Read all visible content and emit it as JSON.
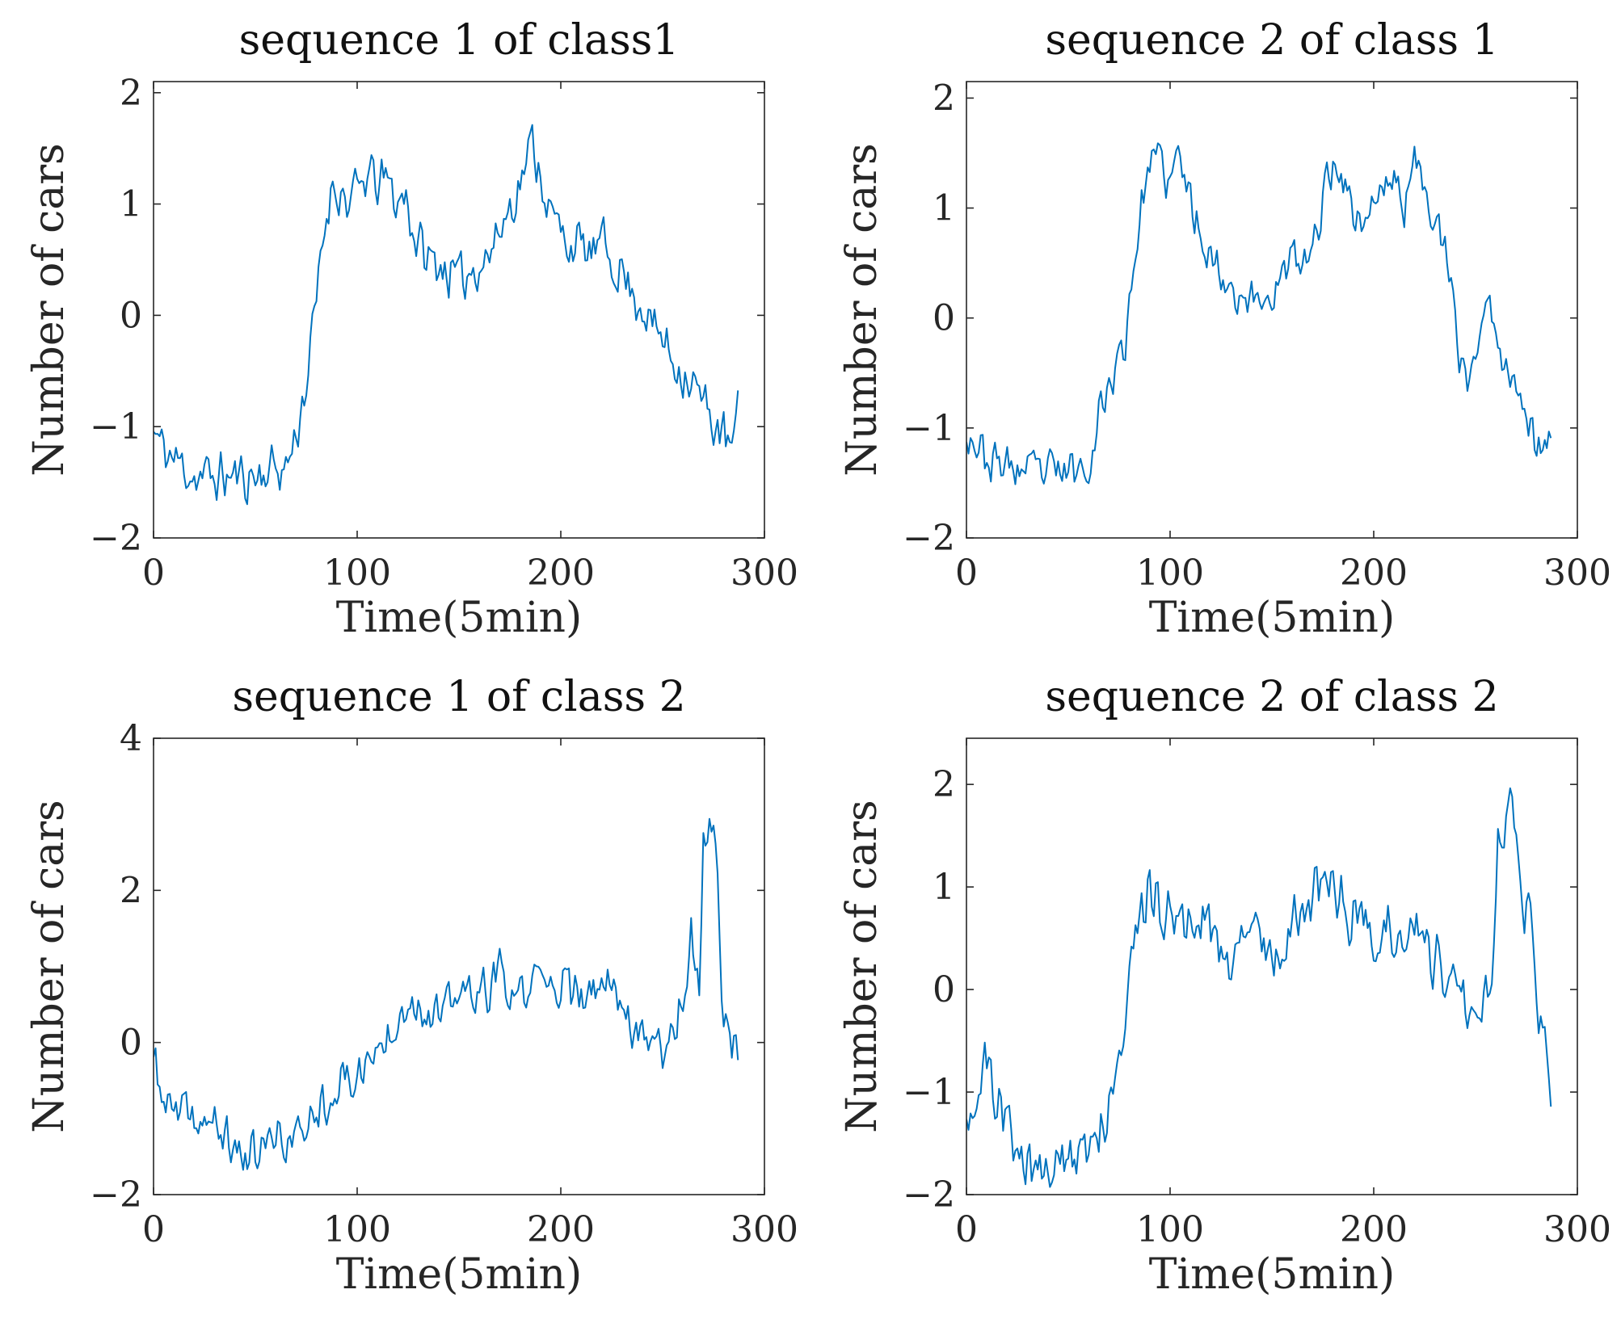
{
  "line_color": "#0072BD",
  "chart_data": [
    {
      "type": "line",
      "title": "sequence 1 of class1",
      "xlabel": "Time(5min)",
      "ylabel": "Number of cars",
      "xlim": [
        0,
        300
      ],
      "ylim": [
        -2,
        2.1
      ],
      "xticks": [
        0,
        100,
        200,
        300
      ],
      "xtick_labels": [
        "0",
        "100",
        "200",
        "300"
      ],
      "yticks": [
        -2,
        -1,
        0,
        1,
        2
      ],
      "ytick_labels": [
        "−2",
        "−1",
        "0",
        "1",
        "2"
      ],
      "x_step": 1,
      "series": [
        {
          "name": "sequence 1 of class1",
          "keypoints": [
            [
              0,
              -1.05
            ],
            [
              5,
              -1.2
            ],
            [
              10,
              -1.3
            ],
            [
              15,
              -1.35
            ],
            [
              20,
              -1.45
            ],
            [
              30,
              -1.45
            ],
            [
              40,
              -1.45
            ],
            [
              50,
              -1.45
            ],
            [
              60,
              -1.35
            ],
            [
              64,
              -1.4
            ],
            [
              68,
              -1.2
            ],
            [
              72,
              -0.9
            ],
            [
              75,
              -0.6
            ],
            [
              78,
              -0.2
            ],
            [
              81,
              0.3
            ],
            [
              84,
              0.8
            ],
            [
              88,
              1.2
            ],
            [
              92,
              1.1
            ],
            [
              96,
              1.0
            ],
            [
              100,
              1.1
            ],
            [
              105,
              1.25
            ],
            [
              110,
              1.2
            ],
            [
              115,
              1.2
            ],
            [
              120,
              1.0
            ],
            [
              124,
              1.1
            ],
            [
              128,
              0.7
            ],
            [
              135,
              0.5
            ],
            [
              142,
              0.45
            ],
            [
              150,
              0.3
            ],
            [
              158,
              0.45
            ],
            [
              165,
              0.55
            ],
            [
              172,
              0.85
            ],
            [
              180,
              1.2
            ],
            [
              186,
              1.55
            ],
            [
              190,
              1.3
            ],
            [
              195,
              0.9
            ],
            [
              200,
              0.75
            ],
            [
              205,
              0.65
            ],
            [
              210,
              0.6
            ],
            [
              215,
              0.55
            ],
            [
              220,
              0.65
            ],
            [
              225,
              0.5
            ],
            [
              230,
              0.4
            ],
            [
              235,
              0.2
            ],
            [
              240,
              0.1
            ],
            [
              245,
              -0.1
            ],
            [
              250,
              -0.2
            ],
            [
              255,
              -0.4
            ],
            [
              260,
              -0.5
            ],
            [
              265,
              -0.6
            ],
            [
              270,
              -0.8
            ],
            [
              275,
              -0.95
            ],
            [
              280,
              -1.1
            ],
            [
              284,
              -1.2
            ],
            [
              287,
              -0.9
            ]
          ],
          "noise": 0.28,
          "seed": 11
        }
      ]
    },
    {
      "type": "line",
      "title": "sequence 2 of class 1",
      "xlabel": "Time(5min)",
      "ylabel": "Number of cars",
      "xlim": [
        0,
        300
      ],
      "ylim": [
        -2,
        2.15
      ],
      "xticks": [
        0,
        100,
        200,
        300
      ],
      "xtick_labels": [
        "0",
        "100",
        "200",
        "300"
      ],
      "yticks": [
        -2,
        -1,
        0,
        1,
        2
      ],
      "ytick_labels": [
        "−2",
        "−1",
        "0",
        "1",
        "2"
      ],
      "x_step": 1,
      "series": [
        {
          "name": "sequence 2 of class 1",
          "keypoints": [
            [
              0,
              -1.0
            ],
            [
              5,
              -1.15
            ],
            [
              10,
              -1.3
            ],
            [
              20,
              -1.35
            ],
            [
              30,
              -1.4
            ],
            [
              40,
              -1.4
            ],
            [
              50,
              -1.4
            ],
            [
              58,
              -1.35
            ],
            [
              62,
              -1.2
            ],
            [
              66,
              -0.8
            ],
            [
              70,
              -0.6
            ],
            [
              74,
              -0.45
            ],
            [
              78,
              -0.2
            ],
            [
              82,
              0.5
            ],
            [
              86,
              1.0
            ],
            [
              90,
              1.45
            ],
            [
              95,
              1.4
            ],
            [
              100,
              1.2
            ],
            [
              104,
              1.5
            ],
            [
              108,
              1.2
            ],
            [
              112,
              0.95
            ],
            [
              118,
              0.65
            ],
            [
              125,
              0.4
            ],
            [
              132,
              0.25
            ],
            [
              140,
              0.15
            ],
            [
              148,
              0.2
            ],
            [
              155,
              0.35
            ],
            [
              160,
              0.55
            ],
            [
              165,
              0.45
            ],
            [
              170,
              0.6
            ],
            [
              176,
              1.2
            ],
            [
              182,
              1.45
            ],
            [
              188,
              1.1
            ],
            [
              193,
              0.85
            ],
            [
              198,
              1.0
            ],
            [
              204,
              1.15
            ],
            [
              210,
              1.3
            ],
            [
              215,
              1.0
            ],
            [
              220,
              1.4
            ],
            [
              225,
              1.3
            ],
            [
              230,
              0.9
            ],
            [
              235,
              0.55
            ],
            [
              238,
              0.25
            ],
            [
              242,
              -0.35
            ],
            [
              246,
              -0.55
            ],
            [
              250,
              -0.3
            ],
            [
              254,
              0.0
            ],
            [
              258,
              0.05
            ],
            [
              262,
              -0.25
            ],
            [
              266,
              -0.55
            ],
            [
              270,
              -0.5
            ],
            [
              274,
              -0.75
            ],
            [
              277,
              -1.0
            ],
            [
              280,
              -1.2
            ],
            [
              283,
              -1.15
            ],
            [
              287,
              -1.1
            ]
          ],
          "noise": 0.24,
          "seed": 23
        }
      ]
    },
    {
      "type": "line",
      "title": "sequence 1 of class 2",
      "xlabel": "Time(5min)",
      "ylabel": "Number of cars",
      "xlim": [
        0,
        300
      ],
      "ylim": [
        -2,
        4
      ],
      "xticks": [
        0,
        100,
        200,
        300
      ],
      "xtick_labels": [
        "0",
        "100",
        "200",
        "300"
      ],
      "yticks": [
        -2,
        0,
        2,
        4
      ],
      "ytick_labels": [
        "−2",
        "0",
        "2",
        "4"
      ],
      "x_step": 1,
      "series": [
        {
          "name": "sequence 1 of class 2",
          "keypoints": [
            [
              0,
              -0.2
            ],
            [
              4,
              -0.7
            ],
            [
              10,
              -0.95
            ],
            [
              20,
              -1.0
            ],
            [
              30,
              -1.1
            ],
            [
              40,
              -1.4
            ],
            [
              48,
              -1.5
            ],
            [
              55,
              -1.35
            ],
            [
              62,
              -1.25
            ],
            [
              70,
              -1.3
            ],
            [
              76,
              -1.0
            ],
            [
              82,
              -0.8
            ],
            [
              90,
              -0.6
            ],
            [
              100,
              -0.4
            ],
            [
              108,
              -0.2
            ],
            [
              115,
              0.1
            ],
            [
              120,
              0.4
            ],
            [
              125,
              0.6
            ],
            [
              130,
              0.5
            ],
            [
              135,
              0.4
            ],
            [
              140,
              0.3
            ],
            [
              145,
              0.5
            ],
            [
              150,
              0.6
            ],
            [
              155,
              0.7
            ],
            [
              160,
              0.55
            ],
            [
              165,
              0.75
            ],
            [
              170,
              0.9
            ],
            [
              175,
              0.55
            ],
            [
              180,
              0.6
            ],
            [
              185,
              0.75
            ],
            [
              190,
              0.85
            ],
            [
              195,
              0.7
            ],
            [
              200,
              0.85
            ],
            [
              205,
              0.6
            ],
            [
              210,
              0.55
            ],
            [
              215,
              0.6
            ],
            [
              220,
              0.7
            ],
            [
              225,
              0.9
            ],
            [
              230,
              0.55
            ],
            [
              235,
              0.2
            ],
            [
              240,
              0.25
            ],
            [
              245,
              0.0
            ],
            [
              250,
              -0.05
            ],
            [
              255,
              0.2
            ],
            [
              260,
              0.6
            ],
            [
              264,
              1.4
            ],
            [
              268,
              0.7
            ],
            [
              270,
              2.5
            ],
            [
              273,
              3.05
            ],
            [
              276,
              2.7
            ],
            [
              278,
              1.5
            ],
            [
              280,
              0.2
            ],
            [
              284,
              0.0
            ],
            [
              287,
              0.0
            ]
          ],
          "noise": 0.38,
          "seed": 37
        }
      ]
    },
    {
      "type": "line",
      "title": "sequence 2 of class 2",
      "xlabel": "Time(5min)",
      "ylabel": "Number of cars",
      "xlim": [
        0,
        300
      ],
      "ylim": [
        -2,
        2.45
      ],
      "xticks": [
        0,
        100,
        200,
        300
      ],
      "xtick_labels": [
        "0",
        "100",
        "200",
        "300"
      ],
      "yticks": [
        -2,
        -1,
        0,
        1,
        2
      ],
      "ytick_labels": [
        "−2",
        "−1",
        "0",
        "1",
        "2"
      ],
      "x_step": 1,
      "series": [
        {
          "name": "sequence 2 of class 2",
          "keypoints": [
            [
              0,
              -1.1
            ],
            [
              5,
              -1.0
            ],
            [
              10,
              -0.8
            ],
            [
              15,
              -1.0
            ],
            [
              20,
              -1.3
            ],
            [
              25,
              -1.6
            ],
            [
              30,
              -1.75
            ],
            [
              40,
              -1.75
            ],
            [
              50,
              -1.7
            ],
            [
              58,
              -1.6
            ],
            [
              64,
              -1.4
            ],
            [
              70,
              -1.0
            ],
            [
              76,
              -0.4
            ],
            [
              80,
              0.2
            ],
            [
              85,
              0.6
            ],
            [
              90,
              0.95
            ],
            [
              95,
              0.8
            ],
            [
              100,
              0.75
            ],
            [
              105,
              0.7
            ],
            [
              110,
              0.6
            ],
            [
              115,
              0.7
            ],
            [
              120,
              0.55
            ],
            [
              125,
              0.45
            ],
            [
              130,
              0.2
            ],
            [
              135,
              0.4
            ],
            [
              140,
              0.6
            ],
            [
              145,
              0.5
            ],
            [
              150,
              0.35
            ],
            [
              155,
              0.5
            ],
            [
              160,
              0.6
            ],
            [
              165,
              0.8
            ],
            [
              170,
              0.9
            ],
            [
              175,
              1.0
            ],
            [
              180,
              1.1
            ],
            [
              185,
              0.8
            ],
            [
              190,
              0.7
            ],
            [
              195,
              0.6
            ],
            [
              200,
              0.5
            ],
            [
              205,
              0.7
            ],
            [
              210,
              0.6
            ],
            [
              215,
              0.55
            ],
            [
              220,
              0.65
            ],
            [
              225,
              0.5
            ],
            [
              230,
              0.3
            ],
            [
              235,
              0.2
            ],
            [
              240,
              0.0
            ],
            [
              245,
              -0.1
            ],
            [
              250,
              -0.2
            ],
            [
              254,
              -0.1
            ],
            [
              258,
              0.3
            ],
            [
              261,
              1.5
            ],
            [
              264,
              1.6
            ],
            [
              268,
              2.0
            ],
            [
              271,
              1.5
            ],
            [
              274,
              0.9
            ],
            [
              278,
              0.4
            ],
            [
              281,
              -0.3
            ],
            [
              284,
              -0.5
            ],
            [
              287,
              -1.0
            ]
          ],
          "noise": 0.36,
          "seed": 51
        }
      ]
    }
  ]
}
